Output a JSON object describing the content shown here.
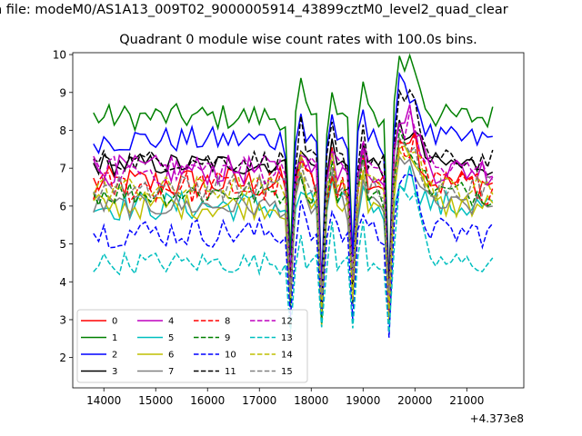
{
  "figure": {
    "suptitle": "n file: modeM0/AS1A13_009T02_9000005914_43899cztM0_level2_quad_clear",
    "offset_label": "+4.373e8"
  },
  "chart_data": {
    "type": "line",
    "title": "Quadrant 0 module wise count rates with 100.0s bins.",
    "xlabel": "",
    "ylabel": "",
    "xlim": [
      13400,
      22100
    ],
    "ylim": [
      1.2,
      10.05
    ],
    "x_offset": 437300000,
    "xticks": [
      14000,
      15000,
      16000,
      17000,
      18000,
      19000,
      20000,
      21000
    ],
    "yticks": [
      2,
      3,
      4,
      5,
      6,
      7,
      8,
      9,
      10
    ],
    "grid": false,
    "legend_position": "lower-left",
    "dips": [
      17600,
      18200,
      18800,
      19500
    ],
    "x": [
      13800,
      13900,
      14000,
      14100,
      14200,
      14300,
      14400,
      14500,
      14600,
      14700,
      14800,
      14900,
      15000,
      15100,
      15200,
      15300,
      15400,
      15500,
      15600,
      15700,
      15800,
      15900,
      16000,
      16100,
      16200,
      16300,
      16400,
      16500,
      16600,
      16700,
      16800,
      16900,
      17000,
      17100,
      17200,
      17300,
      17400,
      17500,
      17600,
      17700,
      17800,
      17900,
      18000,
      18100,
      18200,
      18300,
      18400,
      18500,
      18600,
      18700,
      18800,
      18900,
      19000,
      19100,
      19200,
      19300,
      19400,
      19500,
      19600,
      19700,
      19800,
      19900,
      20000,
      20100,
      20200,
      20300,
      20400,
      20500,
      20600,
      20700,
      20800,
      20900,
      21000,
      21100,
      21200,
      21300,
      21400,
      21500
    ],
    "series": [
      {
        "name": "0",
        "color": "#ff0000",
        "dash": false,
        "level": 6.6,
        "amp": 0.45,
        "peak": 1.4,
        "dip": 2.9
      },
      {
        "name": "1",
        "color": "#008000",
        "dash": false,
        "level": 8.35,
        "amp": 0.35,
        "peak": 1.5,
        "dip": 3.8
      },
      {
        "name": "2",
        "color": "#0000ff",
        "dash": false,
        "level": 7.75,
        "amp": 0.35,
        "peak": 1.3,
        "dip": 3.4
      },
      {
        "name": "3",
        "color": "#000000",
        "dash": false,
        "level": 7.1,
        "amp": 0.3,
        "peak": 0.9,
        "dip": 3.2
      },
      {
        "name": "4",
        "color": "#bf00bf",
        "dash": false,
        "level": 6.95,
        "amp": 0.4,
        "peak": 1.4,
        "dip": 3.0
      },
      {
        "name": "5",
        "color": "#00bfbf",
        "dash": false,
        "level": 6.0,
        "amp": 0.4,
        "peak": 0.8,
        "dip": 2.4
      },
      {
        "name": "6",
        "color": "#bfbf00",
        "dash": false,
        "level": 6.0,
        "amp": 0.35,
        "peak": 1.5,
        "dip": 2.5
      },
      {
        "name": "7",
        "color": "#808080",
        "dash": false,
        "level": 6.0,
        "amp": 0.3,
        "peak": 1.1,
        "dip": 2.4
      },
      {
        "name": "8",
        "color": "#ff0000",
        "dash": true,
        "level": 6.5,
        "amp": 0.45,
        "peak": 1.2,
        "dip": 2.7
      },
      {
        "name": "9",
        "color": "#008000",
        "dash": true,
        "level": 6.35,
        "amp": 0.35,
        "peak": 1.3,
        "dip": 2.7
      },
      {
        "name": "10",
        "color": "#0000ff",
        "dash": true,
        "level": 5.3,
        "amp": 0.4,
        "peak": 1.3,
        "dip": 2.2
      },
      {
        "name": "11",
        "color": "#000000",
        "dash": true,
        "level": 7.2,
        "amp": 0.3,
        "peak": 1.6,
        "dip": 3.3
      },
      {
        "name": "12",
        "color": "#bf00bf",
        "dash": true,
        "level": 6.95,
        "amp": 0.4,
        "peak": 1.2,
        "dip": 2.9
      },
      {
        "name": "13",
        "color": "#00bfbf",
        "dash": true,
        "level": 4.5,
        "amp": 0.3,
        "peak": 1.8,
        "dip": 1.6
      },
      {
        "name": "14",
        "color": "#bfbf00",
        "dash": true,
        "level": 6.45,
        "amp": 0.35,
        "peak": 1.2,
        "dip": 2.6
      },
      {
        "name": "15",
        "color": "#808080",
        "dash": true,
        "level": 6.5,
        "amp": 0.35,
        "peak": 1.0,
        "dip": 2.6
      }
    ]
  }
}
